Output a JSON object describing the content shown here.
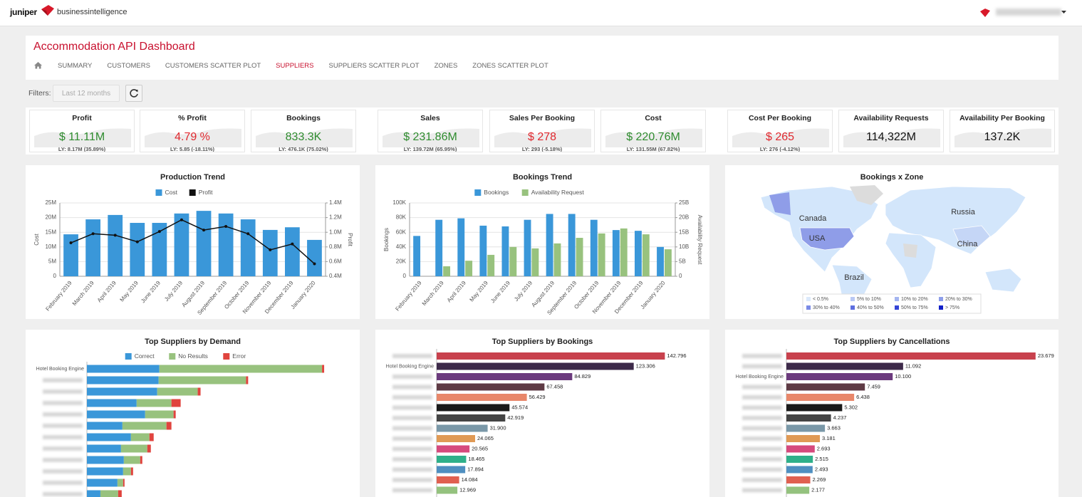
{
  "header": {
    "brand": "juniper",
    "product": "businessintelligence"
  },
  "dashboard": {
    "title": "Accommodation API Dashboard",
    "tabs": [
      "SUMMARY",
      "CUSTOMERS",
      "CUSTOMERS SCATTER PLOT",
      "SUPPLIERS",
      "SUPPLIERS SCATTER PLOT",
      "ZONES",
      "ZONES SCATTER PLOT"
    ],
    "active_tab": 3
  },
  "filters": {
    "label": "Filters:",
    "period": "Last 12 months"
  },
  "kpis": [
    {
      "title": "Profit",
      "value": "$ 11.11M",
      "ly": "LY: 8.17M (35.89%)",
      "color": "#2e8b2e"
    },
    {
      "title": "% Profit",
      "value": "4.79 %",
      "ly": "LY: 5.85 (-18.11%)",
      "color": "#e0282e"
    },
    {
      "title": "Bookings",
      "value": "833.3K",
      "ly": "LY: 476.1K (75.02%)",
      "color": "#2e8b2e"
    },
    {
      "title": "Sales",
      "value": "$ 231.86M",
      "ly": "LY: 139.72M (65.95%)",
      "color": "#2e8b2e"
    },
    {
      "title": "Sales Per Booking",
      "value": "$ 278",
      "ly": "LY: 293 (-5.18%)",
      "color": "#e0282e"
    },
    {
      "title": "Cost",
      "value": "$ 220.76M",
      "ly": "LY: 131.55M (67.82%)",
      "color": "#2e8b2e"
    },
    {
      "title": "Cost Per Booking",
      "value": "$ 265",
      "ly": "LY: 276 (-4.12%)",
      "color": "#e0282e"
    },
    {
      "title": "Availability Requests",
      "value": "114,322M",
      "color": "#111111"
    },
    {
      "title": "Availability Per Booking",
      "value": "137.2K",
      "color": "#111111"
    }
  ],
  "chart_data": [
    {
      "type": "bar",
      "title": "Production Trend",
      "ylabel": "Cost",
      "y2label": "Profit",
      "legend": "top",
      "grid": true,
      "categories": [
        "February 2019",
        "March 2019",
        "April 2019",
        "May 2019",
        "June 2019",
        "July 2019",
        "August 2019",
        "September 2019",
        "October 2019",
        "November 2019",
        "December 2019",
        "January 2020"
      ],
      "series": [
        {
          "name": "Cost",
          "type": "bar",
          "color": "#3a97d9",
          "values": [
            14300000,
            19400000,
            20900000,
            18200000,
            18200000,
            21400000,
            22300000,
            21400000,
            19400000,
            15800000,
            16700000,
            12400000
          ]
        },
        {
          "name": "Profit",
          "type": "line",
          "axis": "y2",
          "color": "#111111",
          "values": [
            856000,
            980000,
            960000,
            870000,
            1010000,
            1170000,
            1030000,
            1080000,
            980000,
            760000,
            840000,
            570000
          ]
        }
      ],
      "ylim": [
        0,
        25000000
      ],
      "yticks": [
        {
          "value": 0,
          "label": "0"
        },
        {
          "value": 5000000,
          "label": "5M"
        },
        {
          "value": 10000000,
          "label": "10M"
        },
        {
          "value": 15000000,
          "label": "15M"
        },
        {
          "value": 20000000,
          "label": "20M"
        },
        {
          "value": 25000000,
          "label": "25M"
        }
      ],
      "y2lim": [
        400000,
        1400000
      ],
      "y2ticks": [
        {
          "value": 400000,
          "label": "0.4M"
        },
        {
          "value": 600000,
          "label": "0.6M"
        },
        {
          "value": 800000,
          "label": "0.8M"
        },
        {
          "value": 1000000,
          "label": "1.0M"
        },
        {
          "value": 1200000,
          "label": "1.2M"
        },
        {
          "value": 1400000,
          "label": "1.4M"
        }
      ]
    },
    {
      "type": "bar",
      "title": "Bookings Trend",
      "ylabel": "Bookings",
      "y2label": "Availability Request",
      "legend": "top",
      "grid": true,
      "categories": [
        "February 2019",
        "March 2019",
        "April 2019",
        "May 2019",
        "June 2019",
        "July 2019",
        "August 2019",
        "September 2019",
        "October 2019",
        "November 2019",
        "December 2019",
        "January 2020"
      ],
      "series": [
        {
          "name": "Bookings",
          "type": "bar",
          "color": "#3a97d9",
          "values": [
            55000,
            77000,
            79000,
            69000,
            68000,
            77000,
            85000,
            85000,
            77000,
            63000,
            62000,
            40000
          ]
        },
        {
          "name": "Availability Request",
          "type": "bar",
          "axis": "y2",
          "color": "#98c27e",
          "values": [
            null,
            3400000000,
            5300000000,
            7300000000,
            10000000000,
            9500000000,
            11200000000,
            13100000000,
            14600000000,
            16300000000,
            14300000000,
            9200000000
          ]
        }
      ],
      "ylim": [
        0,
        100000
      ],
      "yticks": [
        {
          "value": 0,
          "label": "0"
        },
        {
          "value": 20000,
          "label": "20K"
        },
        {
          "value": 40000,
          "label": "40K"
        },
        {
          "value": 60000,
          "label": "60K"
        },
        {
          "value": 80000,
          "label": "80K"
        },
        {
          "value": 100000,
          "label": "100K"
        }
      ],
      "y2lim": [
        0,
        25000000000
      ],
      "y2ticks": [
        {
          "value": 0,
          "label": "0"
        },
        {
          "value": 5000000000,
          "label": "5B"
        },
        {
          "value": 10000000000,
          "label": "10B"
        },
        {
          "value": 15000000000,
          "label": "15B"
        },
        {
          "value": 20000000000,
          "label": "20B"
        },
        {
          "value": 25000000000,
          "label": "25B"
        }
      ]
    },
    {
      "type": "map",
      "title": "Bookings x Zone",
      "labels": [
        "Canada",
        "Russia",
        "USA",
        "China",
        "Brazil"
      ],
      "legend_items": [
        {
          "label": "< 0.5%",
          "color": "#dbe9fb"
        },
        {
          "label": "5% to 10%",
          "color": "#b9c8f4"
        },
        {
          "label": "10% to 20%",
          "color": "#a4b5f0"
        },
        {
          "label": "20% to 30%",
          "color": "#8d9eea"
        },
        {
          "label": "30% to 40%",
          "color": "#7b8be6"
        },
        {
          "label": "40% to 50%",
          "color": "#5d6ee0"
        },
        {
          "label": "50% to 75%",
          "color": "#3545d6"
        },
        {
          "label": "> 75%",
          "color": "#1220c8"
        }
      ]
    },
    {
      "type": "bar",
      "orientation": "horizontal",
      "stacked": true,
      "title": "Top Suppliers by Demand",
      "legend": "top",
      "categories": [
        "Hotel Booking Engine",
        null,
        null,
        null,
        null,
        null,
        null,
        null,
        null,
        null,
        null,
        null
      ],
      "series": [
        {
          "name": "Correct",
          "color": "#3a97d9",
          "values": [
            102,
            101,
            99,
            70,
            82,
            50,
            62,
            48,
            52,
            51,
            43,
            19
          ]
        },
        {
          "name": "No Results",
          "color": "#98c27e",
          "values": [
            229,
            123,
            57,
            49,
            40,
            62,
            26,
            37,
            23,
            11,
            8,
            25
          ]
        },
        {
          "name": "Error",
          "color": "#e0443e",
          "values": [
            3,
            3,
            4,
            13,
            3,
            7,
            6,
            5,
            3,
            3,
            2,
            5
          ]
        }
      ],
      "xlim": [
        0,
        360
      ]
    },
    {
      "type": "bar",
      "orientation": "horizontal",
      "title": "Top Suppliers by Bookings",
      "categories": [
        null,
        "Hotel Booking Engine",
        null,
        null,
        null,
        null,
        null,
        null,
        null,
        null,
        null,
        null,
        null,
        null
      ],
      "values": [
        142796,
        123306,
        84829,
        67458,
        56429,
        45574,
        42919,
        31900,
        24065,
        20565,
        18465,
        17894,
        14084,
        12969
      ],
      "value_labels": [
        "142.796",
        "123.306",
        "84.829",
        "67.458",
        "56.429",
        "45.574",
        "42.919",
        "31.900",
        "24.065",
        "20.565",
        "18.465",
        "17.894",
        "14.084",
        "12.969"
      ],
      "colors": [
        "#c8414d",
        "#3d2a4a",
        "#6b3a7d",
        "#5e3a44",
        "#e8876a",
        "#1a1a1a",
        "#444444",
        "#7a98a8",
        "#e09a55",
        "#d64a7d",
        "#2fb08a",
        "#4f8fc0",
        "#e06050",
        "#94c27e"
      ],
      "xlim": [
        0,
        160000
      ]
    },
    {
      "type": "bar",
      "orientation": "horizontal",
      "title": "Top Suppliers by Cancellations",
      "categories": [
        null,
        null,
        "Hotel Booking Engine",
        null,
        null,
        null,
        null,
        null,
        null,
        null,
        null,
        null,
        null,
        null
      ],
      "values": [
        23679,
        11092,
        10100,
        7459,
        6438,
        5302,
        4237,
        3663,
        3181,
        2693,
        2515,
        2493,
        2269,
        2177
      ],
      "value_labels": [
        "23.679",
        "11.092",
        "10.100",
        "7.459",
        "6.438",
        "5.302",
        "4.237",
        "3.663",
        "3.181",
        "2.693",
        "2.515",
        "2.493",
        "2.269",
        "2.177"
      ],
      "colors": [
        "#c8414d",
        "#3d2a4a",
        "#6b3a7d",
        "#5e3a44",
        "#e8876a",
        "#1a1a1a",
        "#444444",
        "#7a98a8",
        "#e09a55",
        "#d64a7d",
        "#2fb08a",
        "#4f8fc0",
        "#e06050",
        "#94c27e"
      ],
      "xlim": [
        0,
        24300
      ]
    }
  ]
}
